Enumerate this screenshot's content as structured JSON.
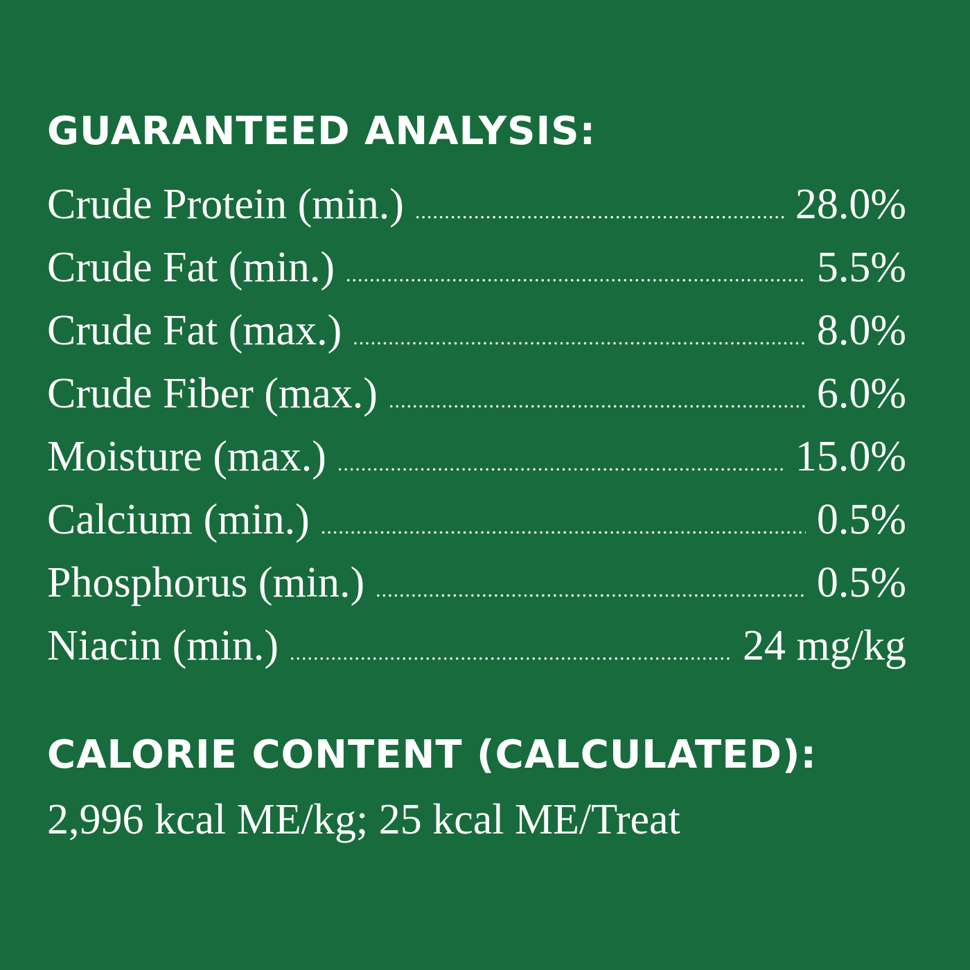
{
  "analysis": {
    "heading": "GUARANTEED ANALYSIS:",
    "rows": [
      {
        "label": "Crude Protein (min.)",
        "value": "28.0%"
      },
      {
        "label": "Crude Fat (min.)",
        "value": "5.5%"
      },
      {
        "label": "Crude Fat (max.)",
        "value": "8.0%"
      },
      {
        "label": "Crude Fiber (max.)",
        "value": "6.0%"
      },
      {
        "label": "Moisture (max.)",
        "value": "15.0%"
      },
      {
        "label": "Calcium (min.)",
        "value": "0.5%"
      },
      {
        "label": "Phosphorus (min.)",
        "value": "0.5%"
      },
      {
        "label": "Niacin (min.)",
        "value": "24 mg/kg"
      }
    ]
  },
  "calorie": {
    "heading": "CALORIE CONTENT (CALCULATED):",
    "text": "2,996 kcal ME/kg; 25 kcal ME/Treat"
  },
  "colors": {
    "background": "#186b3c",
    "text": "#ffffff"
  }
}
